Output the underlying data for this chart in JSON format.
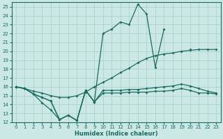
{
  "xlabel": "Humidex (Indice chaleur)",
  "bg_color": "#cce8e4",
  "grid_color": "#b0d4d0",
  "line_color": "#1a6b62",
  "xlim": [
    -0.5,
    23.5
  ],
  "ylim": [
    12,
    25.5
  ],
  "xticks": [
    0,
    1,
    2,
    3,
    4,
    5,
    6,
    7,
    8,
    9,
    10,
    11,
    12,
    13,
    14,
    15,
    16,
    17,
    18,
    19,
    20,
    21,
    22,
    23
  ],
  "yticks": [
    12,
    13,
    14,
    15,
    16,
    17,
    18,
    19,
    20,
    21,
    22,
    23,
    24,
    25
  ],
  "line1_x": [
    0,
    1,
    2,
    3,
    4,
    5,
    6,
    7,
    8,
    9,
    10,
    11,
    12,
    13,
    14,
    15,
    16,
    17,
    18,
    19,
    20,
    21,
    22,
    23
  ],
  "line1_y": [
    16.0,
    15.8,
    15.2,
    14.8,
    14.4,
    12.3,
    12.8,
    12.2,
    15.6,
    14.3,
    15.3,
    15.3,
    15.3,
    15.4,
    15.4,
    15.4,
    15.5,
    15.5,
    15.6,
    15.8,
    15.6,
    15.3,
    15.3,
    15.2
  ],
  "line2_x": [
    0,
    1,
    2,
    3,
    4,
    5,
    6,
    7,
    8,
    9,
    10,
    11,
    12,
    13,
    14,
    15,
    16,
    17,
    18,
    19,
    20,
    21,
    22,
    23
  ],
  "line2_y": [
    16.0,
    15.8,
    15.5,
    15.3,
    15.0,
    14.8,
    14.8,
    15.0,
    15.4,
    16.0,
    16.5,
    17.0,
    17.6,
    18.1,
    18.7,
    19.2,
    19.5,
    19.7,
    19.8,
    20.0,
    20.1,
    20.2,
    20.2,
    20.2
  ],
  "line3_x": [
    0,
    1,
    2,
    3,
    4,
    5,
    6,
    7,
    8,
    9,
    10,
    11,
    12,
    13,
    14,
    15,
    16,
    17,
    18,
    19,
    20,
    21,
    22,
    23
  ],
  "line3_y": [
    16.0,
    15.8,
    15.2,
    14.8,
    14.4,
    12.3,
    12.8,
    12.2,
    15.6,
    14.3,
    15.6,
    15.6,
    15.6,
    15.7,
    15.7,
    15.8,
    15.9,
    16.0,
    16.1,
    16.3,
    16.1,
    15.8,
    15.5,
    15.3
  ],
  "line4_x": [
    0,
    1,
    2,
    3,
    4,
    5,
    6,
    7,
    8,
    9,
    10,
    11,
    12,
    13,
    14,
    15,
    16,
    17,
    18,
    19,
    20,
    21,
    22,
    23
  ],
  "line4_y": [
    16.0,
    15.8,
    15.2,
    14.2,
    13.4,
    12.3,
    12.8,
    12.2,
    15.6,
    14.3,
    22.0,
    22.5,
    23.3,
    23.0,
    25.3,
    24.2,
    18.2,
    22.5,
    null,
    null,
    20.2,
    null,
    null,
    null
  ]
}
